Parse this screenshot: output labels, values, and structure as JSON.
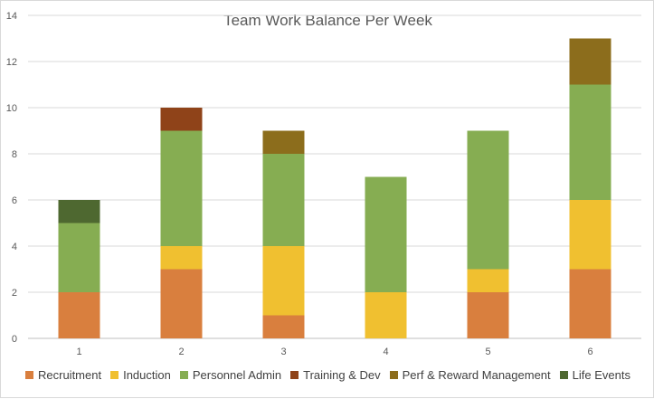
{
  "chart_data": {
    "type": "bar",
    "stacked": true,
    "title": "Team Work Balance Per Week",
    "xlabel": "",
    "ylabel": "",
    "categories": [
      "1",
      "2",
      "3",
      "4",
      "5",
      "6"
    ],
    "ylim": [
      0,
      14
    ],
    "yticks": [
      0,
      2,
      4,
      6,
      8,
      10,
      12,
      14
    ],
    "grid": true,
    "legend_position": "bottom",
    "series": [
      {
        "name": "Recruitment",
        "color": "#d97f3e",
        "values": [
          2,
          3,
          1,
          0,
          2,
          3
        ]
      },
      {
        "name": "Induction",
        "color": "#f0c030",
        "values": [
          0,
          1,
          3,
          2,
          1,
          3
        ]
      },
      {
        "name": "Personnel Admin",
        "color": "#86ad52",
        "values": [
          3,
          5,
          4,
          5,
          6,
          5
        ]
      },
      {
        "name": "Training & Dev",
        "color": "#8f4319",
        "values": [
          0,
          1,
          0,
          0,
          0,
          0
        ]
      },
      {
        "name": "Perf & Reward Management",
        "color": "#8c6d1c",
        "values": [
          0,
          0,
          1,
          0,
          0,
          2
        ]
      },
      {
        "name": "Life Events",
        "color": "#4e6830",
        "values": [
          1,
          0,
          0,
          0,
          0,
          0
        ]
      }
    ]
  }
}
